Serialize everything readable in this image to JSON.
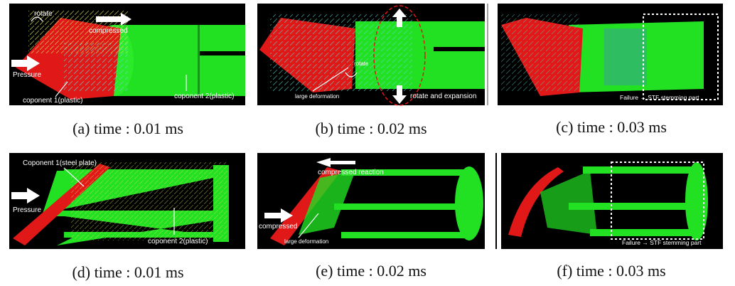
{
  "panels": [
    {
      "caption": "(a) time : 0.01 ms",
      "labels": [
        "rotate",
        "compressed",
        "Pressure",
        "coponent 1(plastic)",
        "coponent 2(plastic)"
      ]
    },
    {
      "caption": "(b) time : 0.02 ms",
      "labels": [
        "rotate",
        "large deformation",
        "rotate and expansion"
      ]
    },
    {
      "caption": "(c) time : 0.03 ms",
      "labels": [
        "Failure → STF stemming part"
      ]
    },
    {
      "caption": "(d) time : 0.01 ms",
      "labels": [
        "Coponent 1(steel plate)",
        "Pressure",
        "coponent 2(plastic)"
      ]
    },
    {
      "caption": "(e) time : 0.02 ms",
      "labels": [
        "compressed reaction",
        "compressed",
        "large deformation"
      ]
    },
    {
      "caption": "(f) time : 0.03 ms",
      "labels": [
        "Failure → STF stemming part"
      ]
    }
  ]
}
